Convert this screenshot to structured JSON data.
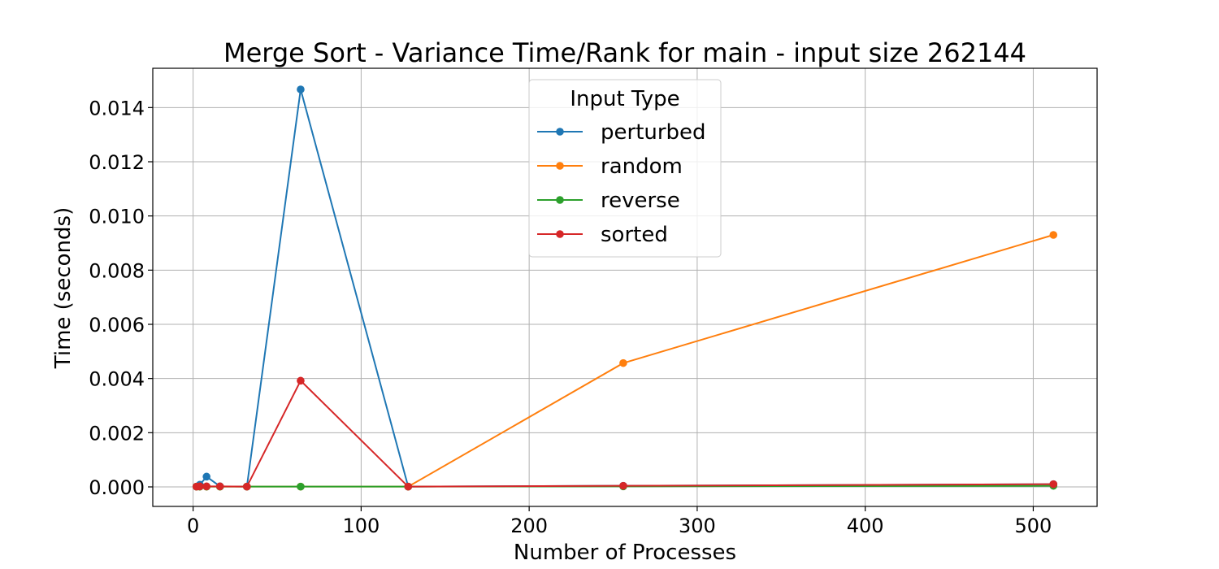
{
  "chart_data": {
    "type": "line",
    "title": "Merge Sort - Variance Time/Rank for main - input size 262144",
    "xlabel": "Number of Processes",
    "ylabel": "Time (seconds)",
    "xlim": [
      -24,
      538
    ],
    "ylim": [
      -0.00072,
      0.01545
    ],
    "xticks": [
      0,
      100,
      200,
      300,
      400,
      500
    ],
    "xtick_labels": [
      "0",
      "100",
      "200",
      "300",
      "400",
      "500"
    ],
    "yticks": [
      0,
      0.002,
      0.004,
      0.006,
      0.008,
      0.01,
      0.012,
      0.014
    ],
    "ytick_labels": [
      "0.000",
      "0.002",
      "0.004",
      "0.006",
      "0.008",
      "0.010",
      "0.012",
      "0.014"
    ],
    "grid": true,
    "legend": {
      "title": "Input Type",
      "placement": "top-center"
    },
    "x": [
      2,
      4,
      8,
      16,
      32,
      64,
      128,
      256,
      512
    ],
    "series": [
      {
        "name": "perturbed",
        "color": "#1f77b4",
        "values": [
          1e-05,
          8e-05,
          0.00038,
          2e-05,
          1e-05,
          0.01467,
          1e-05,
          4e-05,
          0.0001
        ]
      },
      {
        "name": "random",
        "color": "#ff7f0e",
        "values": [
          1e-05,
          1e-05,
          1e-05,
          1e-05,
          1e-05,
          1e-05,
          1e-05,
          0.00457,
          0.0093
        ]
      },
      {
        "name": "reverse",
        "color": "#2ca02c",
        "values": [
          1e-05,
          1e-05,
          1e-05,
          1e-05,
          1e-05,
          1e-05,
          1e-05,
          2e-05,
          4e-05
        ]
      },
      {
        "name": "sorted",
        "color": "#d62728",
        "values": [
          1e-05,
          2e-05,
          2e-05,
          2e-05,
          1e-05,
          0.00392,
          1e-05,
          4e-05,
          0.0001
        ]
      }
    ]
  }
}
